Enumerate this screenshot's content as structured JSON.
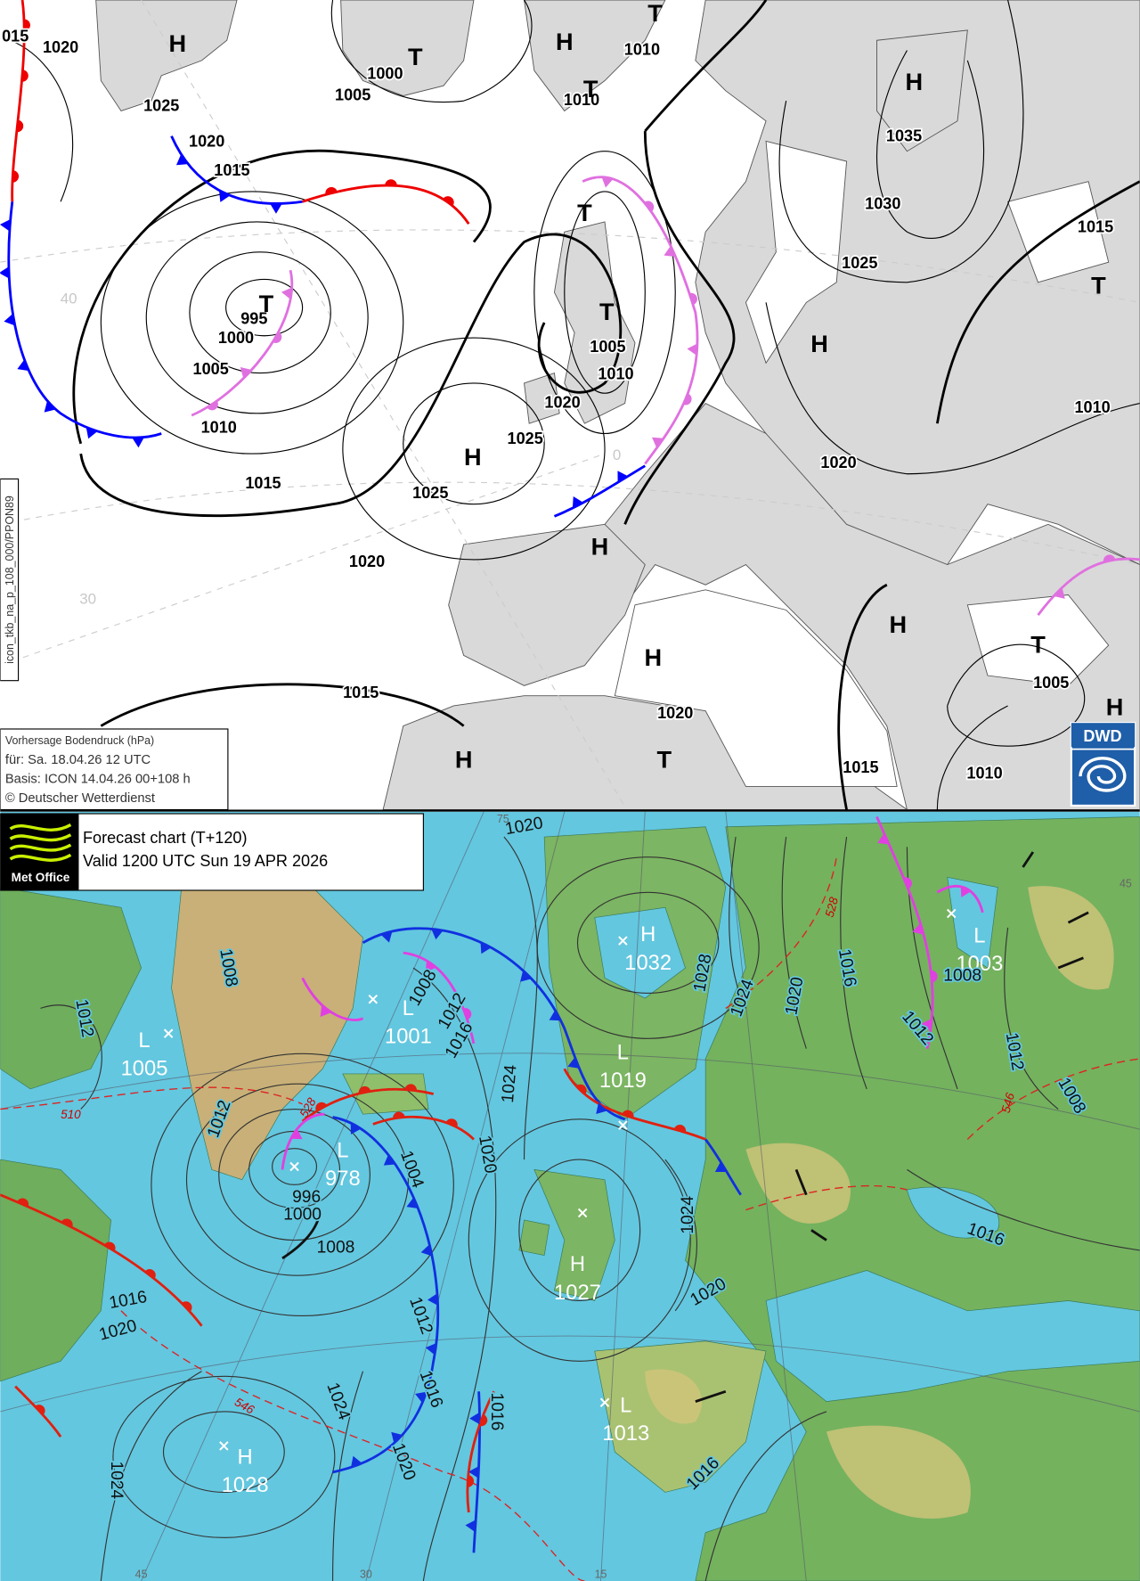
{
  "dwd": {
    "side_label": "icon_tkb_na_p_108_000/PPON89",
    "legend": [
      "Vorhersage Bodendruck (hPa)",
      "für:  Sa. 18.04.26  12 UTC",
      "Basis: ICON  14.04.26 00+108 h",
      "© Deutscher Wetterdienst"
    ],
    "logo": "DWD",
    "isobar_labels": [
      "015",
      "1020",
      "1025",
      "1020",
      "1015",
      "1000",
      "1005",
      "1010",
      "1010",
      "1035",
      "1030",
      "1025",
      "1015",
      "995",
      "1000",
      "1005",
      "1010",
      "1015",
      "1005",
      "1010",
      "1020",
      "1025",
      "1025",
      "1020",
      "1020",
      "1010",
      "1015",
      "1020",
      "1015",
      "1010",
      "1005"
    ],
    "systems": [
      "H",
      "T",
      "H",
      "T",
      "T",
      "H",
      "T",
      "T",
      "T",
      "H",
      "T",
      "H",
      "H",
      "H",
      "H",
      "T",
      "H",
      "H",
      "T"
    ],
    "grid_labels": [
      "40",
      "30",
      "0"
    ]
  },
  "metoffice": {
    "logo": "Met Office",
    "title": "Forecast chart (T+120)",
    "valid": "Valid 1200 UTC Sun 19 APR 2026",
    "systems": [
      {
        "type": "L",
        "value": "1005"
      },
      {
        "type": "L",
        "value": "1001"
      },
      {
        "type": "H",
        "value": "1032"
      },
      {
        "type": "L",
        "value": "1019"
      },
      {
        "type": "L",
        "value": "978"
      },
      {
        "type": "H",
        "value": "1027"
      },
      {
        "type": "L",
        "value": "1013"
      },
      {
        "type": "H",
        "value": "1028"
      },
      {
        "type": "L",
        "value": "1003"
      }
    ],
    "isobar_labels": [
      "1020",
      "1008",
      "1012",
      "1012",
      "1008",
      "1012",
      "1016",
      "1024",
      "1004",
      "1020",
      "996",
      "1000",
      "1008",
      "1012",
      "1016",
      "1020",
      "1016",
      "1016",
      "1020",
      "1024",
      "1024",
      "1028",
      "1024",
      "1020",
      "1016",
      "1012",
      "1008",
      "1012",
      "1008",
      "1016",
      "1024",
      "1020",
      "1016"
    ],
    "thickness_labels": [
      "510",
      "528",
      "546",
      "528",
      "546"
    ],
    "grid_labels": [
      "75",
      "45",
      "30",
      "15",
      "45"
    ]
  }
}
